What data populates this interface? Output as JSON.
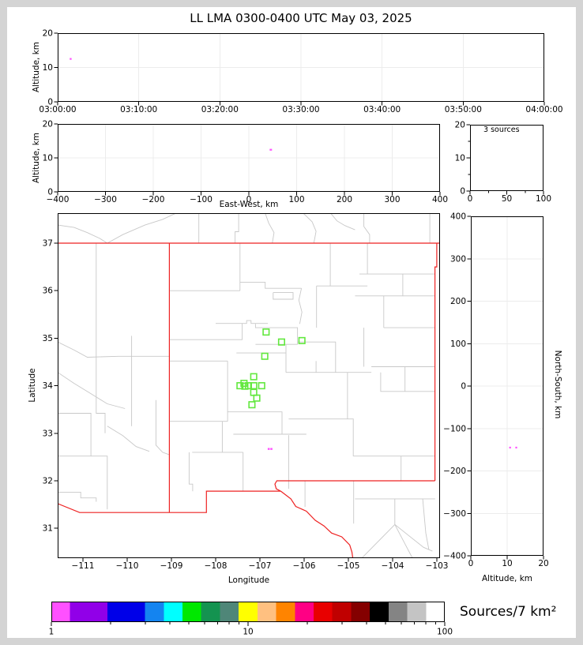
{
  "title": "LL LMA 0300-0400 UTC May 03, 2025",
  "annotations": {
    "histogram_note": "3 sources"
  },
  "axis_labels": {
    "altitude": "Altitude, km",
    "east_west": "East-West, km",
    "longitude": "Longitude",
    "latitude": "Latitude",
    "north_south": "North-South, km"
  },
  "colors": {
    "source_point": "#ff50ff",
    "station_marker": "#62e83e",
    "state_border": "#ee2222",
    "county_line": "#c8c8c8",
    "gridline": "#ececec"
  },
  "colorbar": {
    "label": "Sources/7 km²",
    "scale": "log",
    "tick_labels": [
      "1",
      "10",
      "100"
    ],
    "tick_values": [
      1,
      10,
      100
    ],
    "colors": [
      "#ff50ff",
      "#9100e8",
      "#0000e8",
      "#1484f0",
      "#00ffff",
      "#00e800",
      "#149350",
      "#4f8678",
      "#ffff00",
      "#ffc080",
      "#ff8400",
      "#ff0084",
      "#e80000",
      "#c00000",
      "#840000",
      "#000000",
      "#848484",
      "#c4c4c4",
      "#ffffff"
    ],
    "spans": [
      1,
      2,
      2,
      1,
      1,
      1,
      1,
      1,
      1,
      1,
      1,
      1,
      1,
      1,
      1,
      1,
      1,
      1,
      1
    ]
  },
  "chart_data": [
    {
      "id": "time_height",
      "type": "scatter",
      "x_axis": {
        "label": "",
        "tick_labels": [
          "03:00:00",
          "03:10:00",
          "03:20:00",
          "03:30:00",
          "03:40:00",
          "03:50:00",
          "04:00:00"
        ],
        "range_minutes": [
          0,
          60
        ]
      },
      "y_axis": {
        "label": "Altitude, km",
        "ticks": [
          0,
          10,
          20
        ],
        "range": [
          0,
          20
        ]
      },
      "points": [
        {
          "time_utc": "03:01:36",
          "minutes_after_0300": 1.6,
          "alt_km": 12.5,
          "color": "#ff50ff"
        }
      ]
    },
    {
      "id": "ew_height",
      "type": "scatter",
      "x_axis": {
        "label": "East-West, km",
        "ticks": [
          -400,
          -300,
          -200,
          -100,
          0,
          100,
          200,
          300,
          400
        ],
        "range": [
          -400,
          400
        ]
      },
      "y_axis": {
        "label": "Altitude, km",
        "ticks": [
          0,
          10,
          20
        ],
        "range": [
          0,
          20
        ]
      },
      "points": [
        {
          "ew_km": 46,
          "alt_km": 12.4,
          "color": "#ff50ff"
        }
      ]
    },
    {
      "id": "alt_histogram",
      "type": "histogram",
      "note": "3 sources",
      "x_axis": {
        "ticks": [
          0,
          50,
          100
        ],
        "minor_ticks": [
          25,
          75
        ],
        "range": [
          0,
          100
        ]
      },
      "y_axis": {
        "ticks": [
          0,
          10,
          20
        ],
        "minor_ticks": [
          5,
          15
        ],
        "range": [
          0,
          20
        ]
      },
      "values": []
    },
    {
      "id": "map",
      "type": "scatter",
      "x_axis": {
        "label": "Longitude",
        "ticks": [
          -111,
          -110,
          -109,
          -108,
          -107,
          -106,
          -105,
          -104,
          -103
        ],
        "range": [
          -111.571,
          -102.929
        ]
      },
      "y_axis": {
        "label": "Latitude",
        "ticks": [
          31,
          32,
          33,
          34,
          35,
          36,
          37
        ],
        "range": [
          30.372,
          37.631
        ]
      },
      "stations": [
        {
          "lon": -106.86,
          "lat": 35.13
        },
        {
          "lon": -106.51,
          "lat": 34.92
        },
        {
          "lon": -106.05,
          "lat": 34.95
        },
        {
          "lon": -106.89,
          "lat": 34.62
        },
        {
          "lon": -107.14,
          "lat": 34.19
        },
        {
          "lon": -107.36,
          "lat": 34.05
        },
        {
          "lon": -107.45,
          "lat": 34.0
        },
        {
          "lon": -107.34,
          "lat": 33.99
        },
        {
          "lon": -107.26,
          "lat": 34.0
        },
        {
          "lon": -107.14,
          "lat": 34.0
        },
        {
          "lon": -106.96,
          "lat": 34.0
        },
        {
          "lon": -107.14,
          "lat": 33.86
        },
        {
          "lon": -107.07,
          "lat": 33.74
        },
        {
          "lon": -107.18,
          "lat": 33.6
        }
      ],
      "sources": [
        {
          "lon": -106.8,
          "lat": 32.67
        },
        {
          "lon": -106.74,
          "lat": 32.67
        }
      ]
    },
    {
      "id": "ns_height",
      "type": "scatter",
      "x_axis": {
        "label": "Altitude, km",
        "ticks": [
          0,
          10,
          20
        ],
        "range": [
          0,
          20
        ]
      },
      "y_axis": {
        "label": "North-South, km",
        "ticks": [
          400,
          300,
          200,
          100,
          0,
          -100,
          -200,
          -300,
          -400
        ],
        "range": [
          -400,
          400
        ]
      },
      "points": [
        {
          "alt_km": 10.8,
          "ns_km": -145,
          "color": "#ff50ff"
        },
        {
          "alt_km": 12.5,
          "ns_km": -145,
          "color": "#ff50ff"
        }
      ]
    }
  ]
}
